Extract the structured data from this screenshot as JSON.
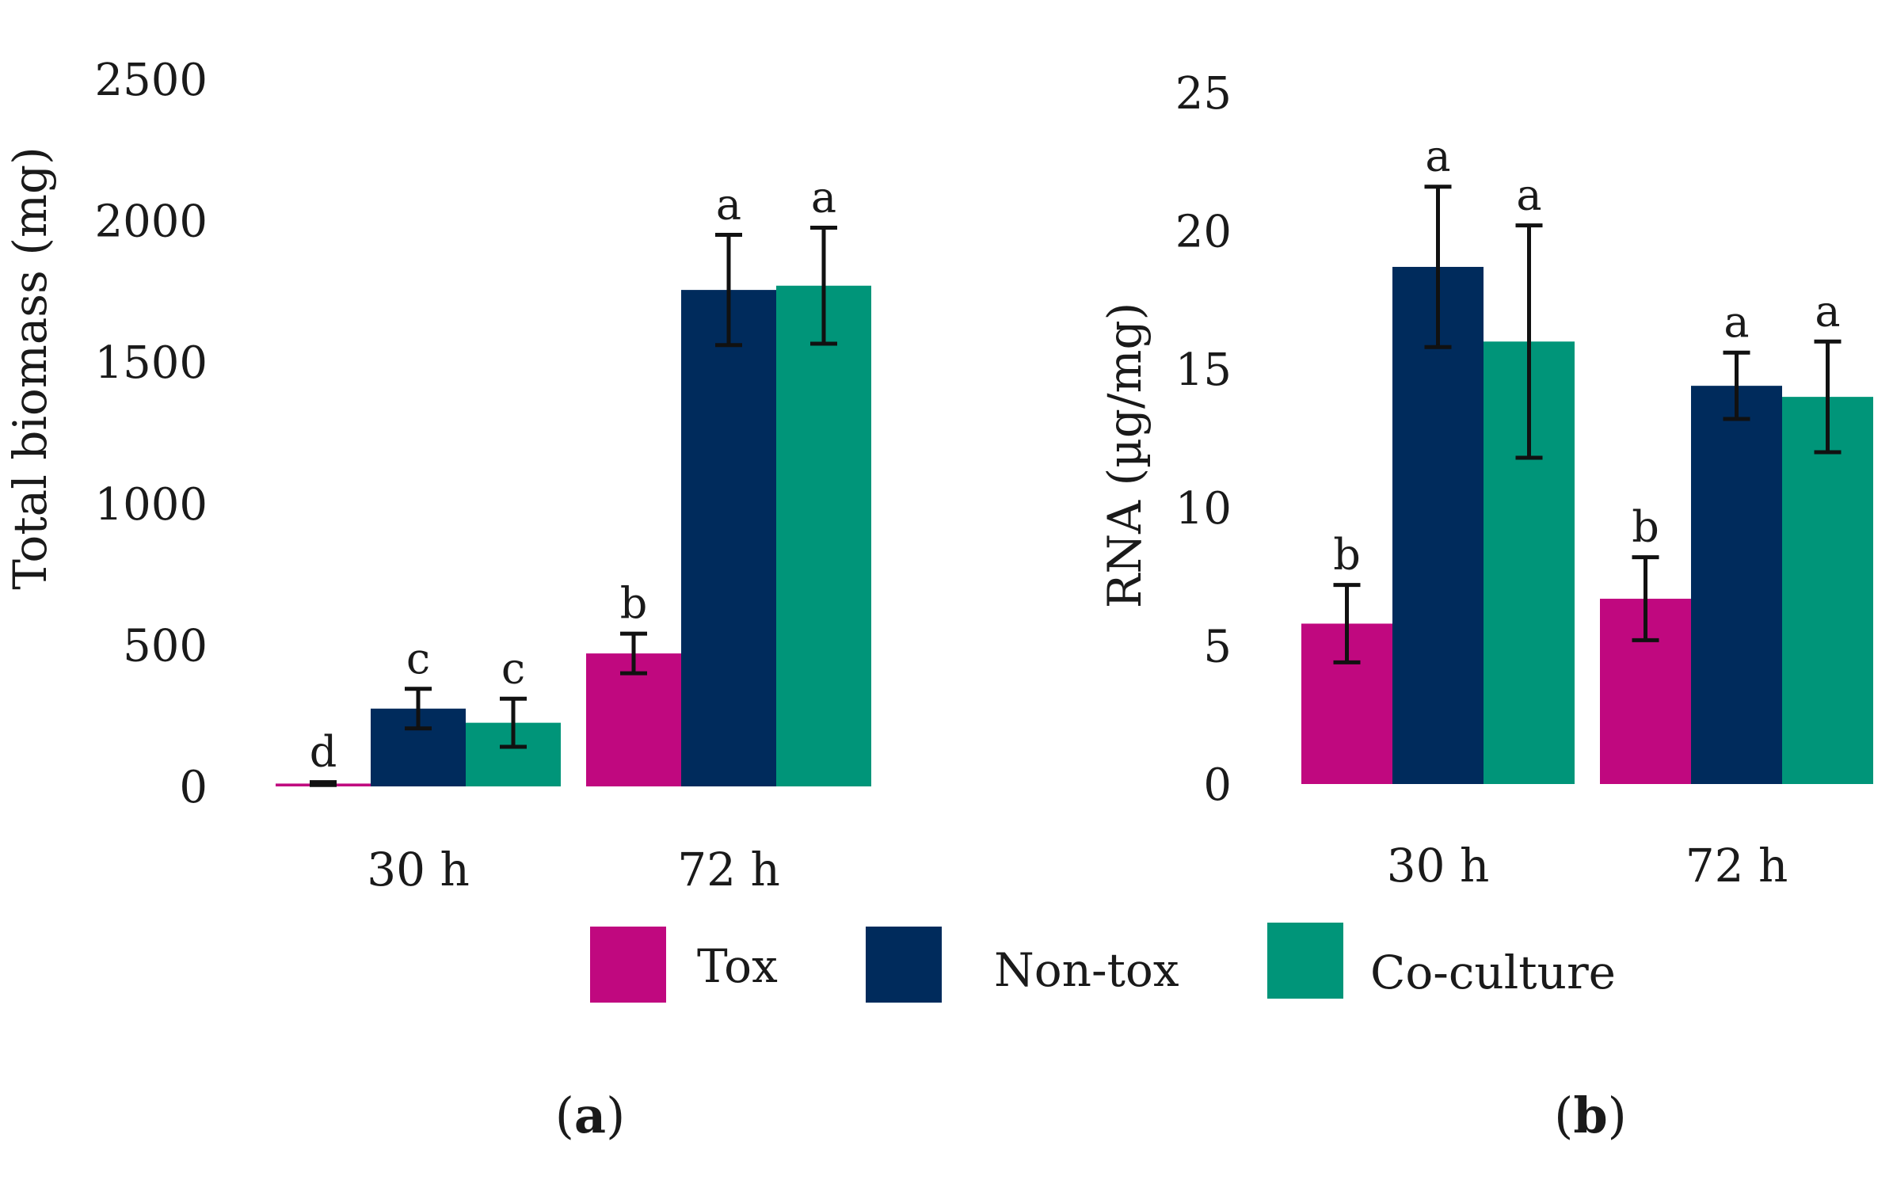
{
  "legend": [
    {
      "name": "Tox",
      "color": "#c0087f"
    },
    {
      "name": "Non-tox",
      "color": "#002b5c"
    },
    {
      "name": "Co-culture",
      "color": "#009579"
    }
  ],
  "panels": [
    {
      "open": "(",
      "letter": "a",
      "close": ")"
    },
    {
      "open": "(",
      "letter": "b",
      "close": ")"
    }
  ],
  "chart_data": [
    {
      "type": "bar",
      "panel": "a",
      "ylabel": "Total biomass (mg)",
      "xlabel": "",
      "ylim": [
        0,
        2500
      ],
      "yticks": [
        0,
        500,
        1000,
        1500,
        2000,
        2500
      ],
      "ytick_labels": [
        "0",
        "500",
        "1000",
        "1500",
        "2000",
        "2500"
      ],
      "grid": false,
      "categories": [
        "30 h",
        "72 h"
      ],
      "series": [
        {
          "name": "Tox",
          "color": "#c0087f",
          "values": [
            10,
            470
          ],
          "errors": [
            5,
            70
          ],
          "letters": [
            "d",
            "b"
          ]
        },
        {
          "name": "Non-tox",
          "color": "#002b5c",
          "values": [
            275,
            1755
          ],
          "errors": [
            70,
            195
          ],
          "letters": [
            "c",
            "a"
          ]
        },
        {
          "name": "Co-culture",
          "color": "#009579",
          "values": [
            225,
            1770
          ],
          "errors": [
            85,
            205
          ],
          "letters": [
            "c",
            "a"
          ]
        }
      ]
    },
    {
      "type": "bar",
      "panel": "b",
      "ylabel": "RNA (µg/mg)",
      "xlabel": "",
      "ylim": [
        0,
        25
      ],
      "yticks": [
        0,
        5,
        10,
        15,
        20,
        25
      ],
      "ytick_labels": [
        "0",
        "5",
        "10",
        "15",
        "20",
        "25"
      ],
      "grid": false,
      "categories": [
        "30 h",
        "72 h"
      ],
      "series": [
        {
          "name": "Tox",
          "color": "#c0087f",
          "values": [
            5.8,
            6.7
          ],
          "errors": [
            1.4,
            1.5
          ],
          "letters": [
            "b",
            "b"
          ]
        },
        {
          "name": "Non-tox",
          "color": "#002b5c",
          "values": [
            18.7,
            14.4
          ],
          "errors": [
            2.9,
            1.2
          ],
          "letters": [
            "a",
            "a"
          ]
        },
        {
          "name": "Co-culture",
          "color": "#009579",
          "values": [
            16.0,
            14.0
          ],
          "errors": [
            4.2,
            2.0
          ],
          "letters": [
            "a",
            "a"
          ]
        }
      ]
    }
  ]
}
